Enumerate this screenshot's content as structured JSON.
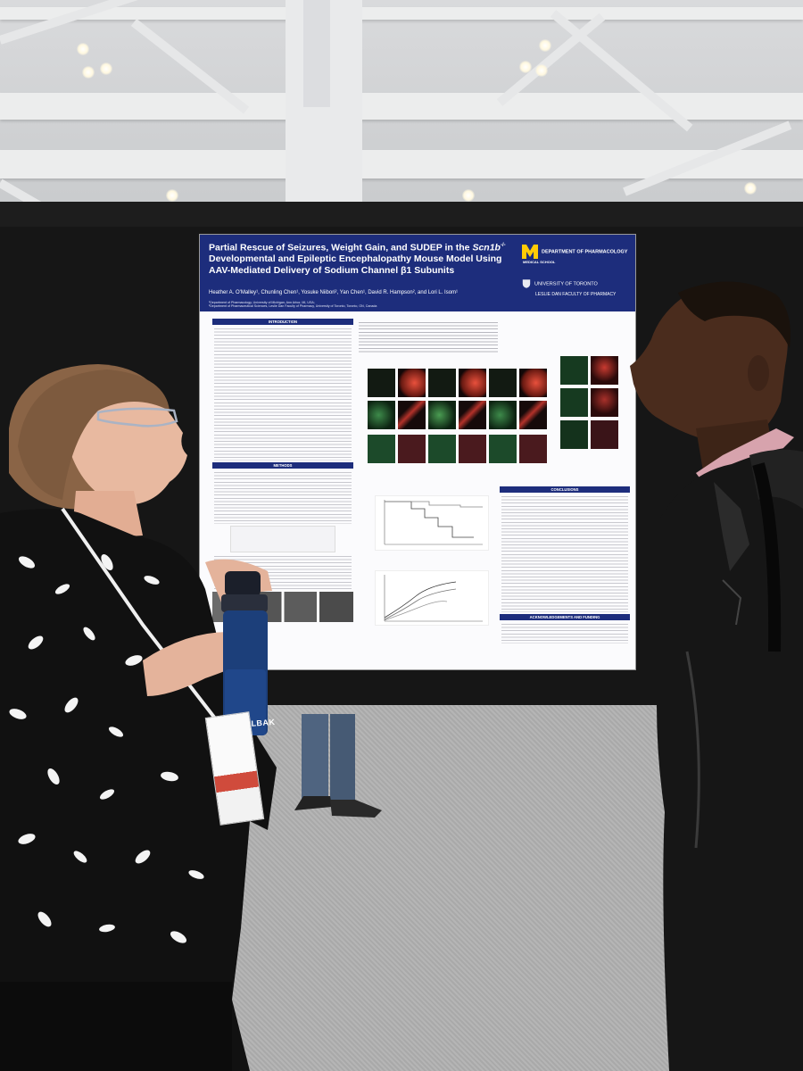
{
  "scene": {
    "colors": {
      "ceiling": "#d6d7d9",
      "board": "#161616",
      "floor": "#b0b0b0",
      "poster_header": "#1d2d7c",
      "poster_bg": "#fbfbfd"
    }
  },
  "poster": {
    "title_pre": "Partial Rescue of Seizures, Weight Gain, and SUDEP in the ",
    "title_gene": "Scn1b",
    "title_sup": "-/-",
    "title_post": " Developmental and Epileptic Encephalopathy Mouse Model Using AAV-Mediated Delivery of Sodium Channel β1 Subunits",
    "authors": "Heather A. O'Malley¹, Chunling Chen¹, Yosuke Niibori², Yan Chen¹, David R. Hampson², and Lori L. Isom¹",
    "affiliation_1": "¹Department of Pharmacology, University of Michigan, Ann Arbor, MI, USA;",
    "affiliation_2": "²Department of Pharmaceutical Sciences, Leslie Dan Faculty of Pharmacy, University of Toronto, Toronto, ON, Canada",
    "logo_m_dept": "DEPARTMENT OF PHARMACOLOGY",
    "logo_m_sub": "MEDICAL SCHOOL",
    "logo_t_name": "UNIVERSITY OF TORONTO",
    "logo_t_sub": "LESLIE DAN FACULTY OF PHARMACY",
    "sections": {
      "introduction": "INTRODUCTION",
      "methods": "METHODS",
      "conclusions": "CONCLUSIONS",
      "acknowledgements": "ACKNOWLEDGEMENTS AND FUNDING"
    }
  },
  "bottle": {
    "brand": "CAMELBAK"
  }
}
